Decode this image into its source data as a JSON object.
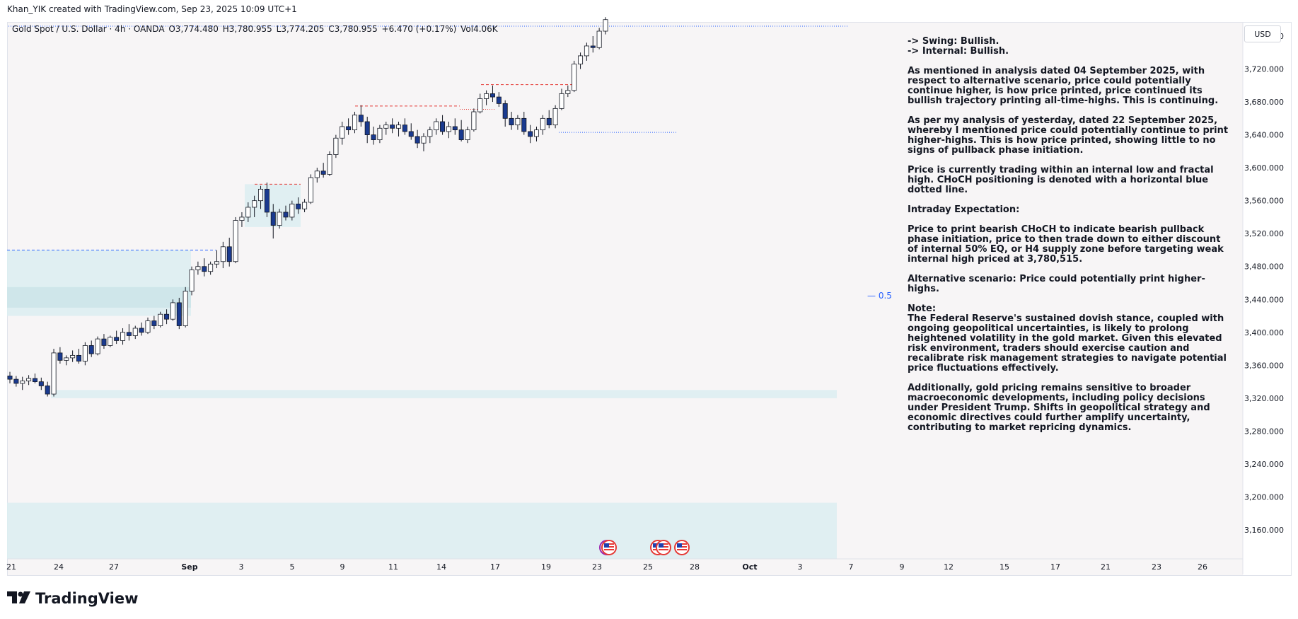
{
  "header": {
    "credit": "Khan_YIK created with TradingView.com, Sep 23, 2025 10:09 UTC+1"
  },
  "legend": {
    "symbol": "Gold Spot / U.S. Dollar · 4h · OANDA",
    "open": "O3,774.480",
    "high": "H3,780.955",
    "low": "L3,774.205",
    "close": "C3,780.955",
    "change": "+6.470 (+0.17%)",
    "volume": "Vol4.06K"
  },
  "currency_button": "USD",
  "eq_label": "— 0.5",
  "zone_labels": [
    "4",
    "4",
    "4"
  ],
  "note": [
    "-> Swing:  Bullish.",
    "-> Internal:  Bullish.",
    "As mentioned in analysis dated 04 September 2025, with respect to alternative scenario, price could potentially continue higher, is how price printed, price continued its bullish trajectory printing all-time-highs.  This is continuing.",
    "As per my analysis of yesterday, dated 22 September 2025, whereby I mentioned price could potentially continue to print higher-highs.  This is how price printed, showing little to no signs of pullback phase initiation.",
    "Price is currently trading within an internal low and fractal high. CHoCH positioning is denoted with a horizontal blue dotted line.",
    "Intraday Expectation:",
    "Price to print bearish CHoCH to indicate bearish pullback phase initiation, price to then trade down to either discount of internal 50% EQ, or H4 supply zone before targeting weak internal high priced at 3,780,515.",
    "Alternative scenario:  Price could potentially print higher-highs.",
    "Note:",
    "The Federal Reserve's sustained dovish stance, coupled with ongoing geopolitical uncertainties, is likely to prolong heightened volatility in the gold market. Given this elevated risk environment, traders should exercise caution and recalibrate risk management strategies to navigate potential price fluctuations effectively.",
    "Additionally, gold pricing remains sensitive to broader macroeconomic developments, including policy decisions under President Trump. Shifts in geopolitical strategy and economic directives could further amplify uncertainty, contributing to market repricing dynamics."
  ],
  "brand": "TradingView",
  "colors": {
    "zone_fill": "#ddeef2",
    "zone_fill_dark": "#cfe6ea",
    "bull_candle": "#ffffff",
    "bear_candle": "#1a3a8f",
    "wick": "#131722",
    "red_dash": "#e53935",
    "blue_dash": "#2962ff",
    "background": "#f7f5f6"
  },
  "chart_data": {
    "type": "candlestick",
    "x_tick_labels": [
      "21",
      "24",
      "27",
      "Sep",
      "3",
      "5",
      "9",
      "11",
      "14",
      "17",
      "19",
      "23",
      "25",
      "28",
      "Oct",
      "3",
      "7",
      "9",
      "12",
      "15",
      "17",
      "21",
      "23",
      "26"
    ],
    "y_tick_labels": [
      "3,760.000",
      "3,720.000",
      "3,680.000",
      "3,640.000",
      "3,600.000",
      "3,560.000",
      "3,520.000",
      "3,480.000",
      "3,440.000",
      "3,400.000",
      "3,360.000",
      "3,320.000",
      "3,280.000",
      "3,240.000",
      "3,200.000",
      "3,160.000"
    ],
    "ylim": [
      3140,
      3783
    ],
    "levels": [
      {
        "style": "dashed-blue",
        "price": 3500
      },
      {
        "style": "dashed-red",
        "price": 3675
      },
      {
        "style": "dashed-red",
        "price": 3580
      },
      {
        "style": "dashed-red",
        "price": 3701
      },
      {
        "style": "dotted-red",
        "price": 3671
      },
      {
        "style": "dotted-blue",
        "price": 3643
      }
    ],
    "zones": [
      {
        "price_top": 3500,
        "price_bottom": 3420
      },
      {
        "price_top": 3330,
        "price_bottom": 3320
      },
      {
        "price_top": 3193,
        "price_bottom": 3125
      },
      {
        "price_top": 3580,
        "price_bottom": 3528
      }
    ],
    "candles": [
      [
        3347,
        3352,
        3338,
        3343
      ],
      [
        3343,
        3347,
        3334,
        3338
      ],
      [
        3338,
        3346,
        3330,
        3341
      ],
      [
        3341,
        3348,
        3336,
        3344
      ],
      [
        3344,
        3350,
        3338,
        3340
      ],
      [
        3340,
        3345,
        3330,
        3335
      ],
      [
        3335,
        3340,
        3322,
        3325
      ],
      [
        3325,
        3380,
        3322,
        3375
      ],
      [
        3375,
        3382,
        3362,
        3366
      ],
      [
        3366,
        3372,
        3360,
        3369
      ],
      [
        3369,
        3378,
        3364,
        3372
      ],
      [
        3372,
        3380,
        3362,
        3365
      ],
      [
        3365,
        3388,
        3360,
        3384
      ],
      [
        3384,
        3390,
        3370,
        3374
      ],
      [
        3374,
        3395,
        3372,
        3392
      ],
      [
        3392,
        3398,
        3380,
        3384
      ],
      [
        3384,
        3396,
        3382,
        3394
      ],
      [
        3394,
        3402,
        3386,
        3390
      ],
      [
        3390,
        3405,
        3385,
        3400
      ],
      [
        3400,
        3410,
        3390,
        3396
      ],
      [
        3396,
        3408,
        3392,
        3405
      ],
      [
        3405,
        3412,
        3396,
        3400
      ],
      [
        3400,
        3418,
        3398,
        3414
      ],
      [
        3414,
        3420,
        3404,
        3408
      ],
      [
        3408,
        3425,
        3406,
        3422
      ],
      [
        3422,
        3428,
        3410,
        3416
      ],
      [
        3416,
        3440,
        3414,
        3436
      ],
      [
        3436,
        3442,
        3404,
        3408
      ],
      [
        3408,
        3455,
        3406,
        3450
      ],
      [
        3450,
        3480,
        3445,
        3476
      ],
      [
        3476,
        3486,
        3470,
        3480
      ],
      [
        3480,
        3490,
        3468,
        3474
      ],
      [
        3474,
        3486,
        3470,
        3483
      ],
      [
        3483,
        3500,
        3478,
        3486
      ],
      [
        3486,
        3510,
        3478,
        3504
      ],
      [
        3504,
        3515,
        3480,
        3486
      ],
      [
        3486,
        3540,
        3484,
        3536
      ],
      [
        3536,
        3546,
        3528,
        3540
      ],
      [
        3540,
        3558,
        3534,
        3552
      ],
      [
        3552,
        3566,
        3540,
        3560
      ],
      [
        3560,
        3578,
        3550,
        3574
      ],
      [
        3574,
        3582,
        3540,
        3546
      ],
      [
        3546,
        3556,
        3514,
        3530
      ],
      [
        3530,
        3550,
        3526,
        3546
      ],
      [
        3546,
        3554,
        3536,
        3540
      ],
      [
        3540,
        3560,
        3536,
        3556
      ],
      [
        3556,
        3564,
        3544,
        3550
      ],
      [
        3550,
        3562,
        3546,
        3558
      ],
      [
        3558,
        3592,
        3556,
        3588
      ],
      [
        3588,
        3600,
        3582,
        3596
      ],
      [
        3596,
        3606,
        3588,
        3592
      ],
      [
        3592,
        3620,
        3590,
        3616
      ],
      [
        3616,
        3640,
        3612,
        3636
      ],
      [
        3636,
        3656,
        3628,
        3650
      ],
      [
        3650,
        3660,
        3640,
        3646
      ],
      [
        3646,
        3668,
        3642,
        3664
      ],
      [
        3664,
        3676,
        3650,
        3656
      ],
      [
        3656,
        3662,
        3630,
        3640
      ],
      [
        3640,
        3650,
        3628,
        3634
      ],
      [
        3634,
        3652,
        3630,
        3648
      ],
      [
        3648,
        3656,
        3640,
        3652
      ],
      [
        3652,
        3660,
        3642,
        3648
      ],
      [
        3648,
        3656,
        3638,
        3652
      ],
      [
        3652,
        3660,
        3640,
        3644
      ],
      [
        3644,
        3654,
        3634,
        3638
      ],
      [
        3638,
        3646,
        3624,
        3630
      ],
      [
        3630,
        3642,
        3620,
        3638
      ],
      [
        3638,
        3650,
        3630,
        3646
      ],
      [
        3646,
        3660,
        3640,
        3656
      ],
      [
        3656,
        3664,
        3640,
        3644
      ],
      [
        3644,
        3656,
        3636,
        3650
      ],
      [
        3650,
        3660,
        3640,
        3646
      ],
      [
        3646,
        3658,
        3632,
        3634
      ],
      [
        3634,
        3650,
        3630,
        3646
      ],
      [
        3646,
        3672,
        3644,
        3668
      ],
      [
        3668,
        3690,
        3666,
        3684
      ],
      [
        3684,
        3694,
        3676,
        3690
      ],
      [
        3690,
        3700,
        3680,
        3686
      ],
      [
        3686,
        3692,
        3674,
        3678
      ],
      [
        3678,
        3682,
        3650,
        3660
      ],
      [
        3660,
        3668,
        3646,
        3652
      ],
      [
        3652,
        3664,
        3646,
        3660
      ],
      [
        3660,
        3668,
        3640,
        3644
      ],
      [
        3644,
        3652,
        3630,
        3638
      ],
      [
        3638,
        3650,
        3632,
        3646
      ],
      [
        3646,
        3664,
        3640,
        3660
      ],
      [
        3660,
        3670,
        3648,
        3652
      ],
      [
        3652,
        3676,
        3648,
        3672
      ],
      [
        3672,
        3696,
        3670,
        3690
      ],
      [
        3690,
        3700,
        3686,
        3694
      ],
      [
        3694,
        3730,
        3692,
        3726
      ],
      [
        3726,
        3740,
        3720,
        3736
      ],
      [
        3736,
        3752,
        3730,
        3748
      ],
      [
        3748,
        3760,
        3740,
        3746
      ],
      [
        3746,
        3770,
        3744,
        3766
      ],
      [
        3766,
        3783,
        3762,
        3780
      ]
    ]
  }
}
